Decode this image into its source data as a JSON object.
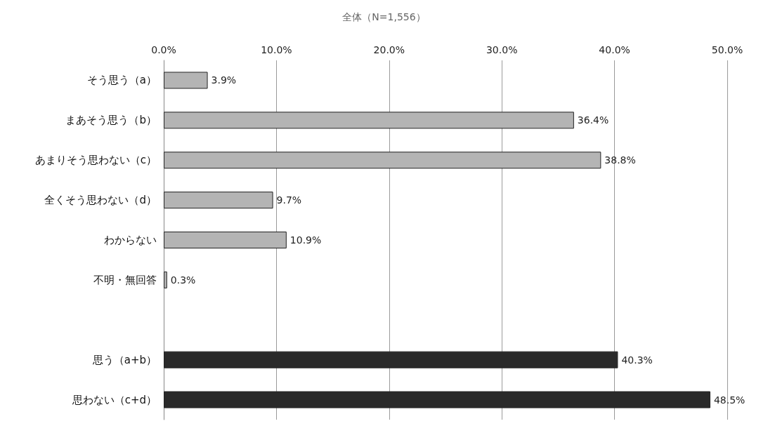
{
  "chart_data": {
    "type": "bar",
    "orientation": "horizontal",
    "title": "全体（N=1,556）",
    "categories": [
      "そう思う（a）",
      "まあそう思う（b）",
      "あまりそう思わない（c）",
      "全くそう思わない（d）",
      "わからない",
      "不明・無回答",
      null,
      "思う（a+b）",
      "思わない（c+d）"
    ],
    "values": [
      3.9,
      36.4,
      38.8,
      9.7,
      10.9,
      0.3,
      null,
      40.3,
      48.5
    ],
    "value_labels": [
      "3.9%",
      "36.4%",
      "38.8%",
      "9.7%",
      "10.9%",
      "0.3%",
      null,
      "40.3%",
      "48.5%"
    ],
    "colors": [
      "#b4b4b4",
      "#b4b4b4",
      "#b4b4b4",
      "#b4b4b4",
      "#b4b4b4",
      "#b4b4b4",
      "#b4b4b4",
      "#2a2a2a",
      "#2a2a2a"
    ],
    "xlim": [
      0,
      50
    ],
    "xticks": [
      {
        "value": 0,
        "label": "0.0%"
      },
      {
        "value": 10,
        "label": "10.0%"
      },
      {
        "value": 20,
        "label": "20.0%"
      },
      {
        "value": 30,
        "label": "30.0%"
      },
      {
        "value": 40,
        "label": "40.0%"
      },
      {
        "value": 50,
        "label": "50.0%"
      }
    ],
    "grid": "x"
  }
}
